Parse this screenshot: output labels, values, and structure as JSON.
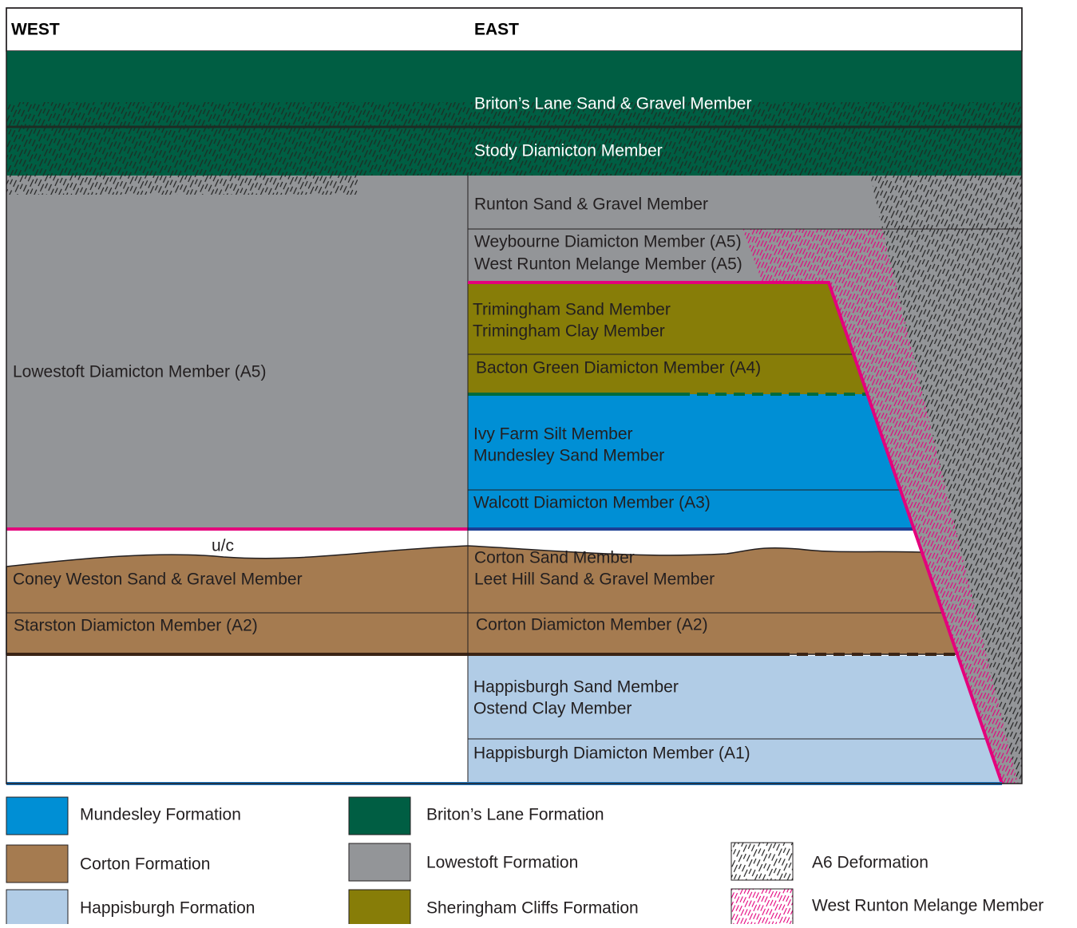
{
  "header": {
    "west": "WEST",
    "east": "EAST"
  },
  "strata": [
    "Briton’s Lane Sand & Gravel Member",
    "Stody Diamicton Member",
    "Runton Sand & Gravel Member",
    "Weybourne Diamicton Member (A5)",
    "West Runton Melange Member (A5)",
    "Trimingham Sand Member",
    "Trimingham Clay Member",
    "Bacton Green Diamicton Member (A4)",
    "Lowestoft Diamicton Member (A5)",
    "Ivy Farm Silt Member",
    "Mundesley Sand Member",
    "Walcott Diamicton Member (A3)",
    "u/c",
    "Coney Weston Sand & Gravel Member",
    "Corton Sand Member",
    "Leet Hill Sand & Gravel Member",
    "Starston Diamicton Member (A2)",
    "Corton Diamicton Member (A2)",
    "Happisburgh Sand Member",
    "Ostend Clay Member",
    "Happisburgh Diamicton Member (A1)"
  ],
  "legend": [
    "Mundesley Formation",
    "Corton Formation",
    "Happisburgh Formation",
    "Briton’s Lane Formation",
    "Lowestoft Formation",
    "Sheringham Cliffs Formation",
    "A6 Deformation",
    "West Runton Melange Member"
  ]
}
